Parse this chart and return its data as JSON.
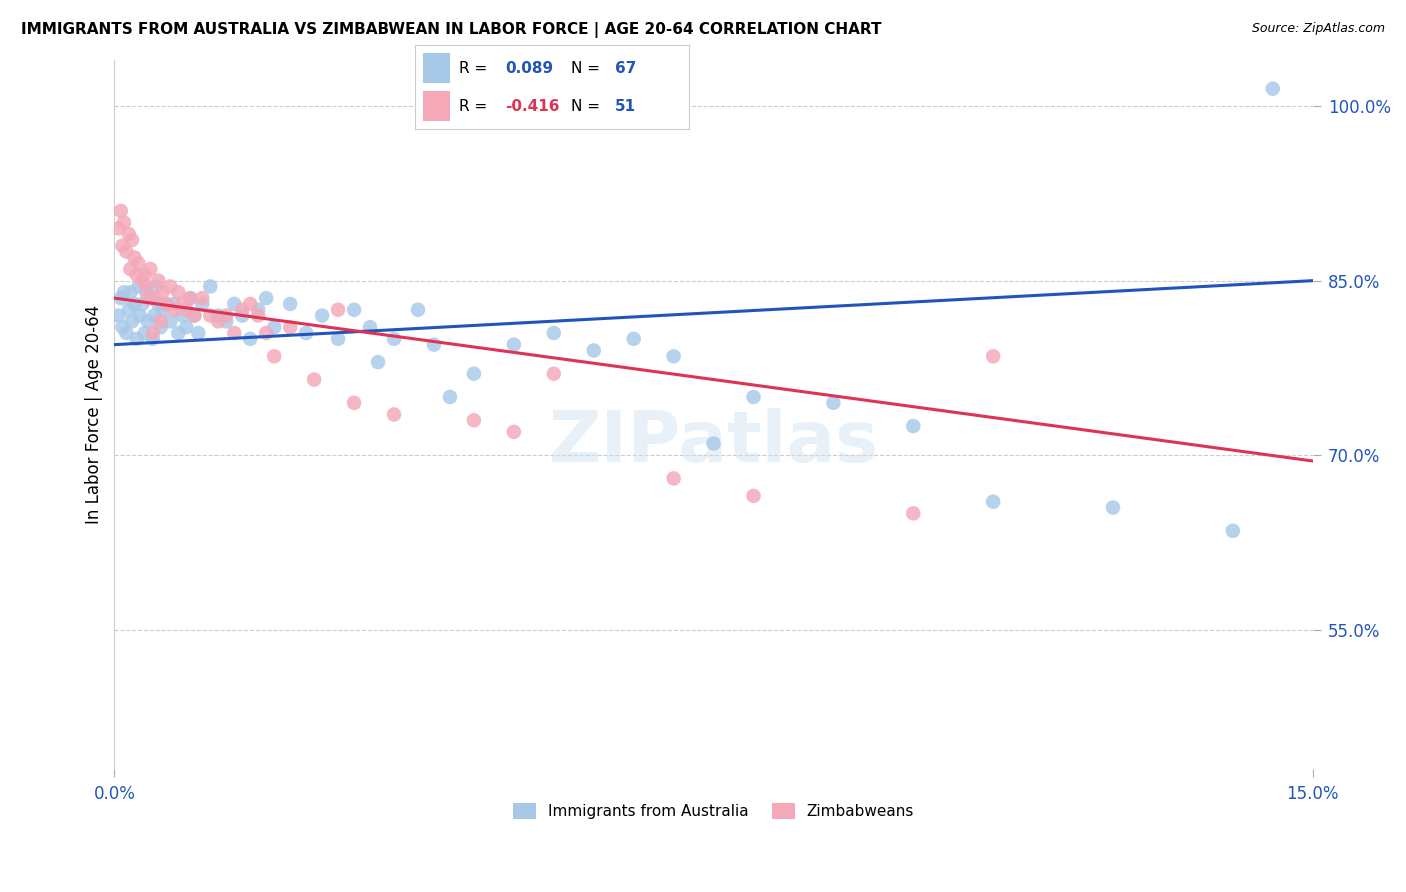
{
  "title": "IMMIGRANTS FROM AUSTRALIA VS ZIMBABWEAN IN LABOR FORCE | AGE 20-64 CORRELATION CHART",
  "source": "Source: ZipAtlas.com",
  "ylabel": "In Labor Force | Age 20-64",
  "yticks": [
    55.0,
    70.0,
    85.0,
    100.0
  ],
  "ytick_labels": [
    "55.0%",
    "70.0%",
    "85.0%",
    "100.0%"
  ],
  "xmin": 0.0,
  "xmax": 15.0,
  "ymin": 43.0,
  "ymax": 104.0,
  "australia_R": "0.089",
  "australia_N": "67",
  "zimbabwe_R": "-0.416",
  "zimbabwe_N": "51",
  "australia_color": "#a8c8e8",
  "zimbabwe_color": "#f4a8b8",
  "trendline_aus_color": "#2255bb",
  "trendline_zim_color": "#dd3355",
  "aus_trend_x0": 0.0,
  "aus_trend_y0": 79.5,
  "aus_trend_x1": 15.0,
  "aus_trend_y1": 85.0,
  "zim_trend_x0": 0.0,
  "zim_trend_y0": 83.5,
  "zim_trend_x1": 15.0,
  "zim_trend_y1": 69.5,
  "australia_scatter_x": [
    0.05,
    0.08,
    0.1,
    0.12,
    0.15,
    0.18,
    0.2,
    0.22,
    0.25,
    0.28,
    0.3,
    0.32,
    0.35,
    0.38,
    0.4,
    0.42,
    0.45,
    0.48,
    0.5,
    0.52,
    0.55,
    0.58,
    0.6,
    0.65,
    0.7,
    0.75,
    0.8,
    0.85,
    0.9,
    0.95,
    1.0,
    1.05,
    1.1,
    1.2,
    1.3,
    1.4,
    1.5,
    1.6,
    1.7,
    1.8,
    1.9,
    2.0,
    2.2,
    2.4,
    2.6,
    2.8,
    3.0,
    3.2,
    3.5,
    3.8,
    4.2,
    4.5,
    5.0,
    5.5,
    6.0,
    6.5,
    7.0,
    7.5,
    8.0,
    9.0,
    10.0,
    11.0,
    12.5,
    14.0,
    14.5,
    3.3,
    4.0
  ],
  "australia_scatter_y": [
    82.0,
    83.5,
    81.0,
    84.0,
    80.5,
    82.5,
    84.0,
    81.5,
    83.0,
    80.0,
    84.5,
    82.0,
    83.0,
    80.5,
    84.0,
    81.5,
    83.5,
    80.0,
    82.0,
    84.5,
    83.0,
    81.0,
    82.5,
    83.0,
    81.5,
    83.0,
    80.5,
    82.0,
    81.0,
    83.5,
    82.0,
    80.5,
    83.0,
    84.5,
    82.0,
    81.5,
    83.0,
    82.0,
    80.0,
    82.5,
    83.5,
    81.0,
    83.0,
    80.5,
    82.0,
    80.0,
    82.5,
    81.0,
    80.0,
    82.5,
    75.0,
    77.0,
    79.5,
    80.5,
    79.0,
    80.0,
    78.5,
    71.0,
    75.0,
    74.5,
    72.5,
    66.0,
    65.5,
    63.5,
    101.5,
    78.0,
    79.5
  ],
  "zimbabwe_scatter_x": [
    0.05,
    0.08,
    0.1,
    0.12,
    0.15,
    0.18,
    0.2,
    0.22,
    0.25,
    0.28,
    0.3,
    0.35,
    0.4,
    0.45,
    0.5,
    0.55,
    0.6,
    0.65,
    0.7,
    0.75,
    0.8,
    0.85,
    0.9,
    0.95,
    1.0,
    1.1,
    1.2,
    1.3,
    1.4,
    1.5,
    1.6,
    1.7,
    1.8,
    1.9,
    2.0,
    2.2,
    2.5,
    2.8,
    3.0,
    3.5,
    4.5,
    5.0,
    5.5,
    7.0,
    8.0,
    10.0,
    11.0,
    0.38,
    0.42,
    0.48,
    0.58
  ],
  "zimbabwe_scatter_y": [
    89.5,
    91.0,
    88.0,
    90.0,
    87.5,
    89.0,
    86.0,
    88.5,
    87.0,
    85.5,
    86.5,
    85.0,
    84.5,
    86.0,
    83.5,
    85.0,
    84.0,
    83.0,
    84.5,
    82.5,
    84.0,
    83.0,
    82.5,
    83.5,
    82.0,
    83.5,
    82.0,
    81.5,
    82.0,
    80.5,
    82.5,
    83.0,
    82.0,
    80.5,
    78.5,
    81.0,
    76.5,
    82.5,
    74.5,
    73.5,
    73.0,
    72.0,
    77.0,
    68.0,
    66.5,
    65.0,
    78.5,
    85.5,
    83.5,
    80.5,
    81.5
  ]
}
